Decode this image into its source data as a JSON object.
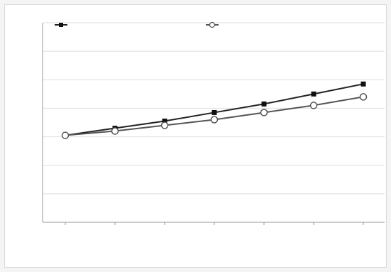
{
  "chart_data": {
    "type": "line",
    "title": "",
    "xlabel": "",
    "ylabel": "",
    "categories": [
      "",
      "",
      "",
      "",
      "",
      "",
      ""
    ],
    "yticks": [
      "",
      "",
      "",
      "",
      "",
      "",
      "",
      ""
    ],
    "ylim": [
      0,
      7
    ],
    "grid": true,
    "legend_position": "top",
    "series": [
      {
        "name": "",
        "marker": "filled-square",
        "color": "#222222",
        "values": [
          3.05,
          3.3,
          3.55,
          3.85,
          4.15,
          4.5,
          4.85
        ]
      },
      {
        "name": "",
        "marker": "open-circle",
        "color": "#555555",
        "values": [
          3.05,
          3.2,
          3.4,
          3.6,
          3.85,
          4.1,
          4.4
        ]
      }
    ]
  }
}
